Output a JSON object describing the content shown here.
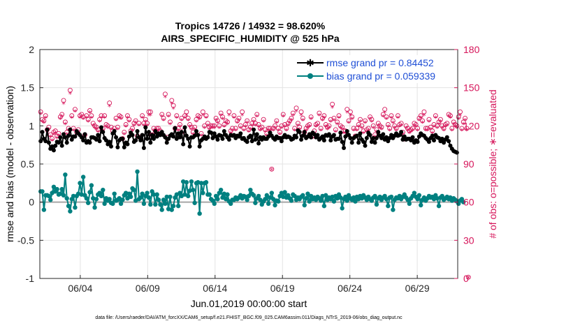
{
  "chart_data": {
    "type": "line",
    "title_line1": "Tropics 14726 / 14932 = 98.620%",
    "title_line2": "AIRS_SPECIFIC_HUMIDITY @ 525 hPa",
    "xlabel": "Jun.01,2019 00:00:00 start",
    "ylabel_left": "rmse and bias (model - observation)",
    "ylabel_right": "# of obs: o=possible; ∗=evaluated",
    "footnote": "data file: /Users/raeder/DAI/ATM_forcXX/CAM6_setup/f.e21.FHIST_BGC.f09_025.CAM6assim.011/Diags_NTrS_2019-06/obs_diag_output.nc",
    "xlim": [
      1,
      32
    ],
    "ylim_left": [
      -1,
      2
    ],
    "ylim_right": [
      0,
      180
    ],
    "xticks": [
      4,
      9,
      14,
      19,
      24,
      29
    ],
    "xtick_labels": [
      "06/04",
      "06/09",
      "06/14",
      "06/19",
      "06/24",
      "06/29"
    ],
    "yticks_left": [
      "2",
      "1.5",
      "1",
      "0.5",
      "0",
      "-0.5",
      "-1"
    ],
    "yticks_right": [
      "180",
      "150",
      "120",
      "90",
      "60",
      "30",
      "0"
    ],
    "yticks_left_vals": [
      2,
      1.5,
      1,
      0.5,
      0,
      -0.5,
      -1
    ],
    "yticks_right_vals": [
      180,
      150,
      120,
      90,
      60,
      30,
      0
    ],
    "grid": true,
    "legend_position": "top-right",
    "series": [
      {
        "name": "rmse grand pr = 0.84452",
        "color": "#000000",
        "marker": "star",
        "values": [
          0.8,
          0.92,
          0.83,
          0.8,
          0.95,
          0.78,
          0.7,
          0.73,
          0.68,
          0.74,
          0.79,
          0.78,
          0.85,
          0.74,
          0.89,
          0.85,
          0.78,
          0.87,
          0.95,
          0.82,
          0.86,
          0.86,
          0.93,
          0.9,
          0.88,
          0.85,
          0.81,
          0.89,
          0.78,
          0.8,
          0.78,
          0.85,
          0.85,
          0.84,
          0.82,
          0.88,
          0.8,
          0.98,
          0.92,
          0.84,
          0.81,
          0.76,
          0.79,
          0.73,
          0.9,
          0.93,
          0.85,
          0.72,
          0.81,
          0.83,
          0.83,
          0.72,
          0.78,
          0.76,
          0.86,
          0.91,
          0.88,
          0.79,
          0.81,
          0.93,
          0.85,
          0.81,
          0.88,
          0.71,
          0.98,
          0.83,
          0.92,
          0.78,
          0.88,
          0.83,
          0.93,
          0.86,
          0.9,
          0.88,
          0.92,
          0.88,
          0.85,
          0.78,
          0.83,
          0.87,
          0.89,
          0.86,
          0.97,
          0.83,
          0.9,
          0.85,
          0.92,
          0.76,
          0.98,
          0.87,
          0.83,
          0.73,
          0.85,
          0.85,
          0.87,
          0.93,
          0.88,
          0.73,
          0.81,
          0.83,
          0.86,
          0.83,
          0.85,
          0.92,
          0.91,
          0.84,
          0.9,
          0.86,
          0.82,
          0.88,
          0.87,
          0.83,
          0.93,
          0.88,
          0.85,
          0.82,
          0.88,
          0.87,
          0.88,
          0.84,
          0.87,
          0.86,
          0.9,
          0.83,
          0.84,
          0.81,
          0.79,
          0.85,
          0.87,
          0.8,
          0.95,
          0.82,
          0.89,
          0.77,
          0.85,
          0.82,
          0.85,
          0.83,
          0.83,
          0.86,
          0.91,
          0.87,
          0.84,
          0.82,
          0.86,
          0.84,
          0.84,
          0.8,
          0.85,
          0.88,
          0.85,
          0.86,
          0.85,
          0.82,
          0.83,
          0.87,
          0.85,
          0.94,
          0.92,
          0.82,
          0.87,
          0.92,
          0.84,
          0.86,
          0.89,
          0.85,
          0.91,
          0.89,
          0.85,
          0.88,
          0.82,
          0.84,
          0.86,
          0.81,
          0.88,
          0.87,
          0.89,
          0.81,
          0.86,
          0.88,
          0.82,
          0.83,
          0.83,
          0.91,
          0.79,
          0.71,
          0.86,
          0.93,
          0.88,
          0.84,
          0.78,
          0.84,
          0.86,
          0.87,
          0.78,
          0.9,
          0.82,
          0.79,
          0.74,
          0.84,
          0.91,
          0.88,
          0.79,
          0.84,
          0.78,
          0.84,
          0.92,
          0.87,
          0.84,
          0.89,
          0.82,
          0.85,
          0.8,
          0.84,
          0.88,
          0.84,
          0.87,
          0.9,
          0.87,
          0.88,
          0.92,
          0.82,
          0.86,
          0.82,
          0.83,
          0.83,
          0.81,
          0.85,
          0.78,
          0.81,
          0.79,
          0.86,
          0.9,
          0.88,
          0.87,
          0.84,
          0.82,
          0.79,
          0.84,
          0.87,
          0.81,
          0.88,
          0.85,
          0.84,
          0.8,
          0.83,
          0.78,
          0.82,
          0.85,
          0.8,
          0.74,
          0.7,
          0.67,
          0.66,
          0.65
        ]
      },
      {
        "name": "bias grand pr = 0.059339",
        "color": "#008080",
        "marker": "circle",
        "values": [
          0.14,
          0.14,
          -0.1,
          0.09,
          0.09,
          0.08,
          0.03,
          0.12,
          0.2,
          0.14,
          0.17,
          0.1,
          0.11,
          0.17,
          0.09,
          0.36,
          0.05,
          -0.05,
          -0.12,
          0.04,
          0.08,
          -0.07,
          0.08,
          0.11,
          0.25,
          0.1,
          0.33,
          0.09,
          0.05,
          -0.01,
          0.13,
          0.22,
          0.05,
          -0.07,
          0.04,
          0.1,
          0.12,
          0.08,
          0.16,
          -0.02,
          0.05,
          0.02,
          0.04,
          -0.01,
          -0.02,
          0.11,
          0.02,
          0.03,
          0.05,
          -0.02,
          0.03,
          0.09,
          0.12,
          0.05,
          0.11,
          0.07,
          0.18,
          0.16,
          0.02,
          0.4,
          0.04,
          0.06,
          0.11,
          -0.02,
          0.08,
          0.12,
          0.06,
          -0.03,
          0.14,
          0.1,
          -0.03,
          0.1,
          0.03,
          -0.03,
          -0.1,
          0.03,
          -0.02,
          0.07,
          -0.09,
          0.07,
          -0.1,
          -0.05,
          0.06,
          0.1,
          -0.05,
          0.12,
          0.08,
          0.27,
          0.1,
          0.26,
          0.08,
          0.15,
          0.27,
          0.16,
          -0.01,
          0.25,
          0.26,
          -0.15,
          0.25,
          0.12,
          0.25,
          0.26,
          0.1,
          0.1,
          0.04,
          0.02,
          -0.02,
          0.08,
          0.04,
          0.12,
          0.16,
          0.06,
          0.11,
          0.04,
          0.1,
          0.01,
          -0.02,
          0.03,
          0.03,
          0.06,
          0.04,
          0.06,
          0.09,
          0.05,
          0.08,
          0.07,
          0.03,
          0.08,
          0.16,
          0.11,
          0.09,
          -0.01,
          0.05,
          0.08,
          0.03,
          -0.03,
          0.01,
          0.04,
          0.09,
          -0.02,
          0.06,
          0.12,
          0.04,
          -0.04,
          0.02,
          0.01,
          0.08,
          0.12,
          0.07,
          0.13,
          0.06,
          0.09,
          0.05,
          0.02,
          0.1,
          0.08,
          0.03,
          0.06,
          0.04,
          0.07,
          0.09,
          -0.04,
          0.05,
          0.11,
          0.01,
          0.08,
          0.04,
          0.06,
          0.03,
          0.07,
          0.05,
          0.02,
          0.08,
          -0.05,
          0.09,
          0.03,
          0.06,
          0.04,
          0.07,
          0.01,
          0.08,
          0.05,
          0.1,
          0.06,
          -0.08,
          0.04,
          0.07,
          0.02,
          0.09,
          0.05,
          0.03,
          0.06,
          0.01,
          0.07,
          0.04,
          0.08,
          0.05,
          0.09,
          0.06,
          0.03,
          0.07,
          0.04,
          0.02,
          0.06,
          0.08,
          -0.03,
          0.05,
          0.07,
          0.03,
          0.06,
          0.08,
          0.04,
          -0.05,
          0.06,
          0.07,
          -0.1,
          0.03,
          0.06,
          0.05,
          0.08,
          0.04,
          0.07,
          0.1,
          0.06,
          0.03,
          -0.02,
          0.05,
          0.08,
          0.12,
          0.07,
          0.04,
          0.09,
          -0.04,
          0.03,
          0.06,
          0.02,
          0.05,
          0.08,
          0.06,
          0.07,
          0.04,
          0.09,
          0.05,
          -0.05,
          0.06,
          0.08,
          0.03,
          0.05,
          0.07,
          0.04,
          0.06,
          0.02,
          0.05,
          0.03,
          0.01,
          -0.02,
          0.02,
          0.04,
          0.0
        ]
      },
      {
        "name": "# obs possible",
        "color": "#d6155a",
        "marker": "o",
        "axis": "right",
        "values": [
          131,
          125,
          124,
          128,
          117,
          119,
          113,
          110,
          115,
          116,
          112,
          114,
          127,
          129,
          140,
          123,
          115,
          118,
          148,
          128,
          118,
          133,
          115,
          117,
          128,
          129,
          127,
          113,
          128,
          125,
          132,
          128,
          122,
          120,
          119,
          117,
          125,
          128,
          118,
          128,
          121,
          120,
          138,
          119,
          116,
          118,
          126,
          119,
          128,
          127,
          110,
          115,
          121,
          128,
          125,
          116,
          118,
          122,
          124,
          112,
          122,
          111,
          128,
          122,
          125,
          122,
          131,
          131,
          113,
          118,
          116,
          118,
          118,
          116,
          129,
          126,
          145,
          111,
          129,
          123,
          140,
          136,
          118,
          128,
          118,
          121,
          126,
          116,
          128,
          131,
          126,
          121,
          119,
          115,
          119,
          125,
          128,
          127,
          114,
          131,
          120,
          128,
          122,
          119,
          120,
          120,
          120,
          126,
          124,
          120,
          130,
          127,
          121,
          124,
          123,
          131,
          116,
          118,
          128,
          118,
          124,
          126,
          120,
          131,
          118,
          121,
          124,
          117,
          119,
          122,
          125,
          122,
          129,
          121,
          118,
          119,
          125,
          117,
          114,
          118,
          118,
          86,
          118,
          120,
          124,
          118,
          115,
          120,
          129,
          121,
          118,
          122,
          124,
          126,
          130,
          118,
          134,
          122,
          119,
          131,
          126,
          115,
          118,
          120,
          121,
          127,
          112,
          116,
          121,
          122,
          130,
          118,
          126,
          128,
          121,
          119,
          120,
          125,
          137,
          126,
          117,
          123,
          128,
          120,
          119,
          116,
          116,
          133,
          124,
          131,
          127,
          118,
          112,
          118,
          121,
          125,
          120,
          116,
          124,
          117,
          118,
          127,
          125,
          120,
          113,
          117,
          122,
          120,
          119,
          129,
          133,
          127,
          121,
          118,
          128,
          124,
          120,
          118,
          128,
          121,
          122,
          115,
          110,
          120,
          118,
          116,
          117,
          118,
          122,
          121,
          118,
          126,
          128,
          124,
          131,
          118,
          118,
          125,
          119,
          116,
          121,
          128,
          120,
          123,
          125,
          120,
          118,
          121,
          122,
          129,
          128,
          118,
          123,
          121,
          120,
          127,
          131,
          118,
          123,
          126,
          118,
          1
        ]
      },
      {
        "name": "# obs evaluated",
        "color": "#d6155a",
        "marker": "asterisk",
        "axis": "right",
        "values": [
          129,
          123,
          122,
          126,
          115,
          117,
          111,
          108,
          113,
          114,
          110,
          112,
          125,
          127,
          137,
          121,
          113,
          116,
          145,
          126,
          116,
          131,
          113,
          115,
          126,
          127,
          125,
          111,
          126,
          123,
          130,
          126,
          120,
          118,
          117,
          115,
          123,
          126,
          116,
          126,
          119,
          118,
          135,
          117,
          114,
          116,
          124,
          117,
          126,
          125,
          108,
          113,
          119,
          126,
          123,
          114,
          116,
          120,
          122,
          110,
          120,
          109,
          126,
          120,
          123,
          120,
          128,
          128,
          111,
          116,
          114,
          116,
          116,
          114,
          127,
          124,
          142,
          109,
          127,
          121,
          137,
          133,
          116,
          126,
          116,
          119,
          124,
          114,
          126,
          128,
          124,
          119,
          117,
          113,
          117,
          123,
          126,
          125,
          112,
          128,
          118,
          126,
          120,
          117,
          118,
          118,
          118,
          124,
          122,
          118,
          128,
          125,
          119,
          122,
          121,
          128,
          114,
          116,
          126,
          116,
          122,
          124,
          118,
          128,
          116,
          119,
          122,
          115,
          117,
          120,
          123,
          120,
          127,
          119,
          116,
          117,
          123,
          115,
          112,
          116,
          116,
          85,
          116,
          118,
          122,
          116,
          113,
          118,
          127,
          119,
          116,
          120,
          122,
          124,
          128,
          116,
          131,
          120,
          117,
          128,
          124,
          113,
          116,
          118,
          119,
          125,
          110,
          114,
          119,
          120,
          128,
          116,
          124,
          126,
          119,
          117,
          118,
          123,
          134,
          124,
          115,
          121,
          126,
          118,
          117,
          114,
          114,
          130,
          122,
          128,
          125,
          116,
          110,
          116,
          119,
          123,
          118,
          114,
          122,
          115,
          116,
          125,
          123,
          118,
          111,
          115,
          120,
          118,
          117,
          127,
          130,
          125,
          119,
          116,
          126,
          122,
          118,
          116,
          126,
          119,
          120,
          113,
          108,
          118,
          116,
          114,
          115,
          116,
          120,
          119,
          116,
          124,
          126,
          122,
          128,
          116,
          116,
          123,
          117,
          114,
          119,
          126,
          118,
          121,
          123,
          118,
          116,
          119,
          120,
          127,
          126,
          116,
          121,
          119,
          118,
          125,
          128,
          116,
          121,
          124,
          116,
          0
        ]
      }
    ]
  }
}
